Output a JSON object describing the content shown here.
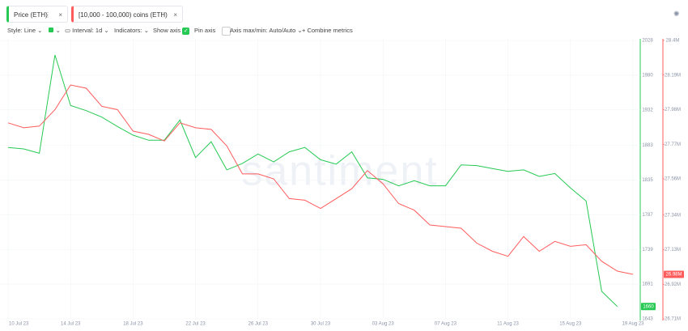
{
  "ui": {
    "metric_1": "Price (ETH)",
    "metric_2": "[10,000 - 100,000) coins (ETH)",
    "style": "Style: Line",
    "interval": "Interval: 1d",
    "indicators": "Indicators:",
    "show_axis": "Show axis",
    "pin_axis": "Pin axis",
    "axis_minmax": "Axis max/min: Auto/Auto",
    "combine": "+ Combine metrics",
    "watermark": "santiment"
  },
  "chart_data": {
    "type": "line",
    "categories": [
      "10 Jul 23",
      null,
      null,
      null,
      "14 Jul 23",
      null,
      null,
      null,
      "18 Jul 23",
      null,
      null,
      null,
      "22 Jul 23",
      null,
      null,
      null,
      "26 Jul 23",
      null,
      null,
      null,
      "30 Jul 23",
      null,
      null,
      null,
      "03 Aug 23",
      null,
      null,
      null,
      "07 Aug 23",
      null,
      null,
      null,
      "11 Aug 23",
      null,
      null,
      null,
      "15 Aug 23",
      null,
      null,
      null,
      "19 Aug 23"
    ],
    "ylim": [
      1643,
      2028
    ],
    "yticks": [
      2028,
      1980,
      1932,
      1883,
      1835,
      1787,
      1739,
      1691,
      1643
    ],
    "y2lim": [
      26710000,
      28400000
    ],
    "y2ticks": [
      {
        "value": 28400000,
        "label": "28.4M"
      },
      {
        "value": 28190000,
        "label": "28.19M"
      },
      {
        "value": 27980000,
        "label": "27.98M"
      },
      {
        "value": 27770000,
        "label": "27.77M"
      },
      {
        "value": 27560000,
        "label": "27.56M"
      },
      {
        "value": 27340000,
        "label": "27.34M"
      },
      {
        "value": 27130000,
        "label": "27.13M"
      },
      {
        "value": 26920000,
        "label": "26.92M"
      },
      {
        "value": 26710000,
        "label": "26.71M"
      }
    ],
    "series": [
      {
        "name": "Price (ETH)",
        "color": "#26c953",
        "values": [
          1880,
          1878,
          1872,
          2008,
          1938,
          1931,
          1922,
          1909,
          1897,
          1890,
          1890,
          1918,
          1866,
          1888,
          1849,
          1858,
          1871,
          1860,
          1874,
          1880,
          1863,
          1857,
          1874,
          1838,
          1836,
          1827,
          1834,
          1827,
          1827,
          1856,
          1855,
          1851,
          1847,
          1849,
          1840,
          1844,
          1824,
          1806,
          1681,
          1660,
          null
        ]
      },
      {
        "name": "[10,000 - 100,000) coins (ETH)",
        "color": "#ff5b5b",
        "axis": "y2",
        "values": [
          27900000,
          27870000,
          27880000,
          27980000,
          28130000,
          28110000,
          28000000,
          27980000,
          27850000,
          27830000,
          27790000,
          27900000,
          27870000,
          27860000,
          27760000,
          27590000,
          27590000,
          27560000,
          27440000,
          27430000,
          27380000,
          27440000,
          27500000,
          27610000,
          27530000,
          27410000,
          27370000,
          27280000,
          27270000,
          27260000,
          27170000,
          27120000,
          27090000,
          27210000,
          27120000,
          27180000,
          27150000,
          27160000,
          27060000,
          27000000,
          26980000
        ],
        "value_labels": [
          null,
          null,
          null,
          null,
          null,
          null,
          null,
          null,
          null,
          null,
          null,
          null,
          null,
          null,
          null,
          null,
          null,
          null,
          null,
          null,
          null,
          null,
          null,
          null,
          null,
          null,
          null,
          null,
          null,
          null,
          null,
          null,
          null,
          null,
          null,
          null,
          null,
          null,
          null,
          null,
          "26.98M"
        ]
      }
    ]
  }
}
